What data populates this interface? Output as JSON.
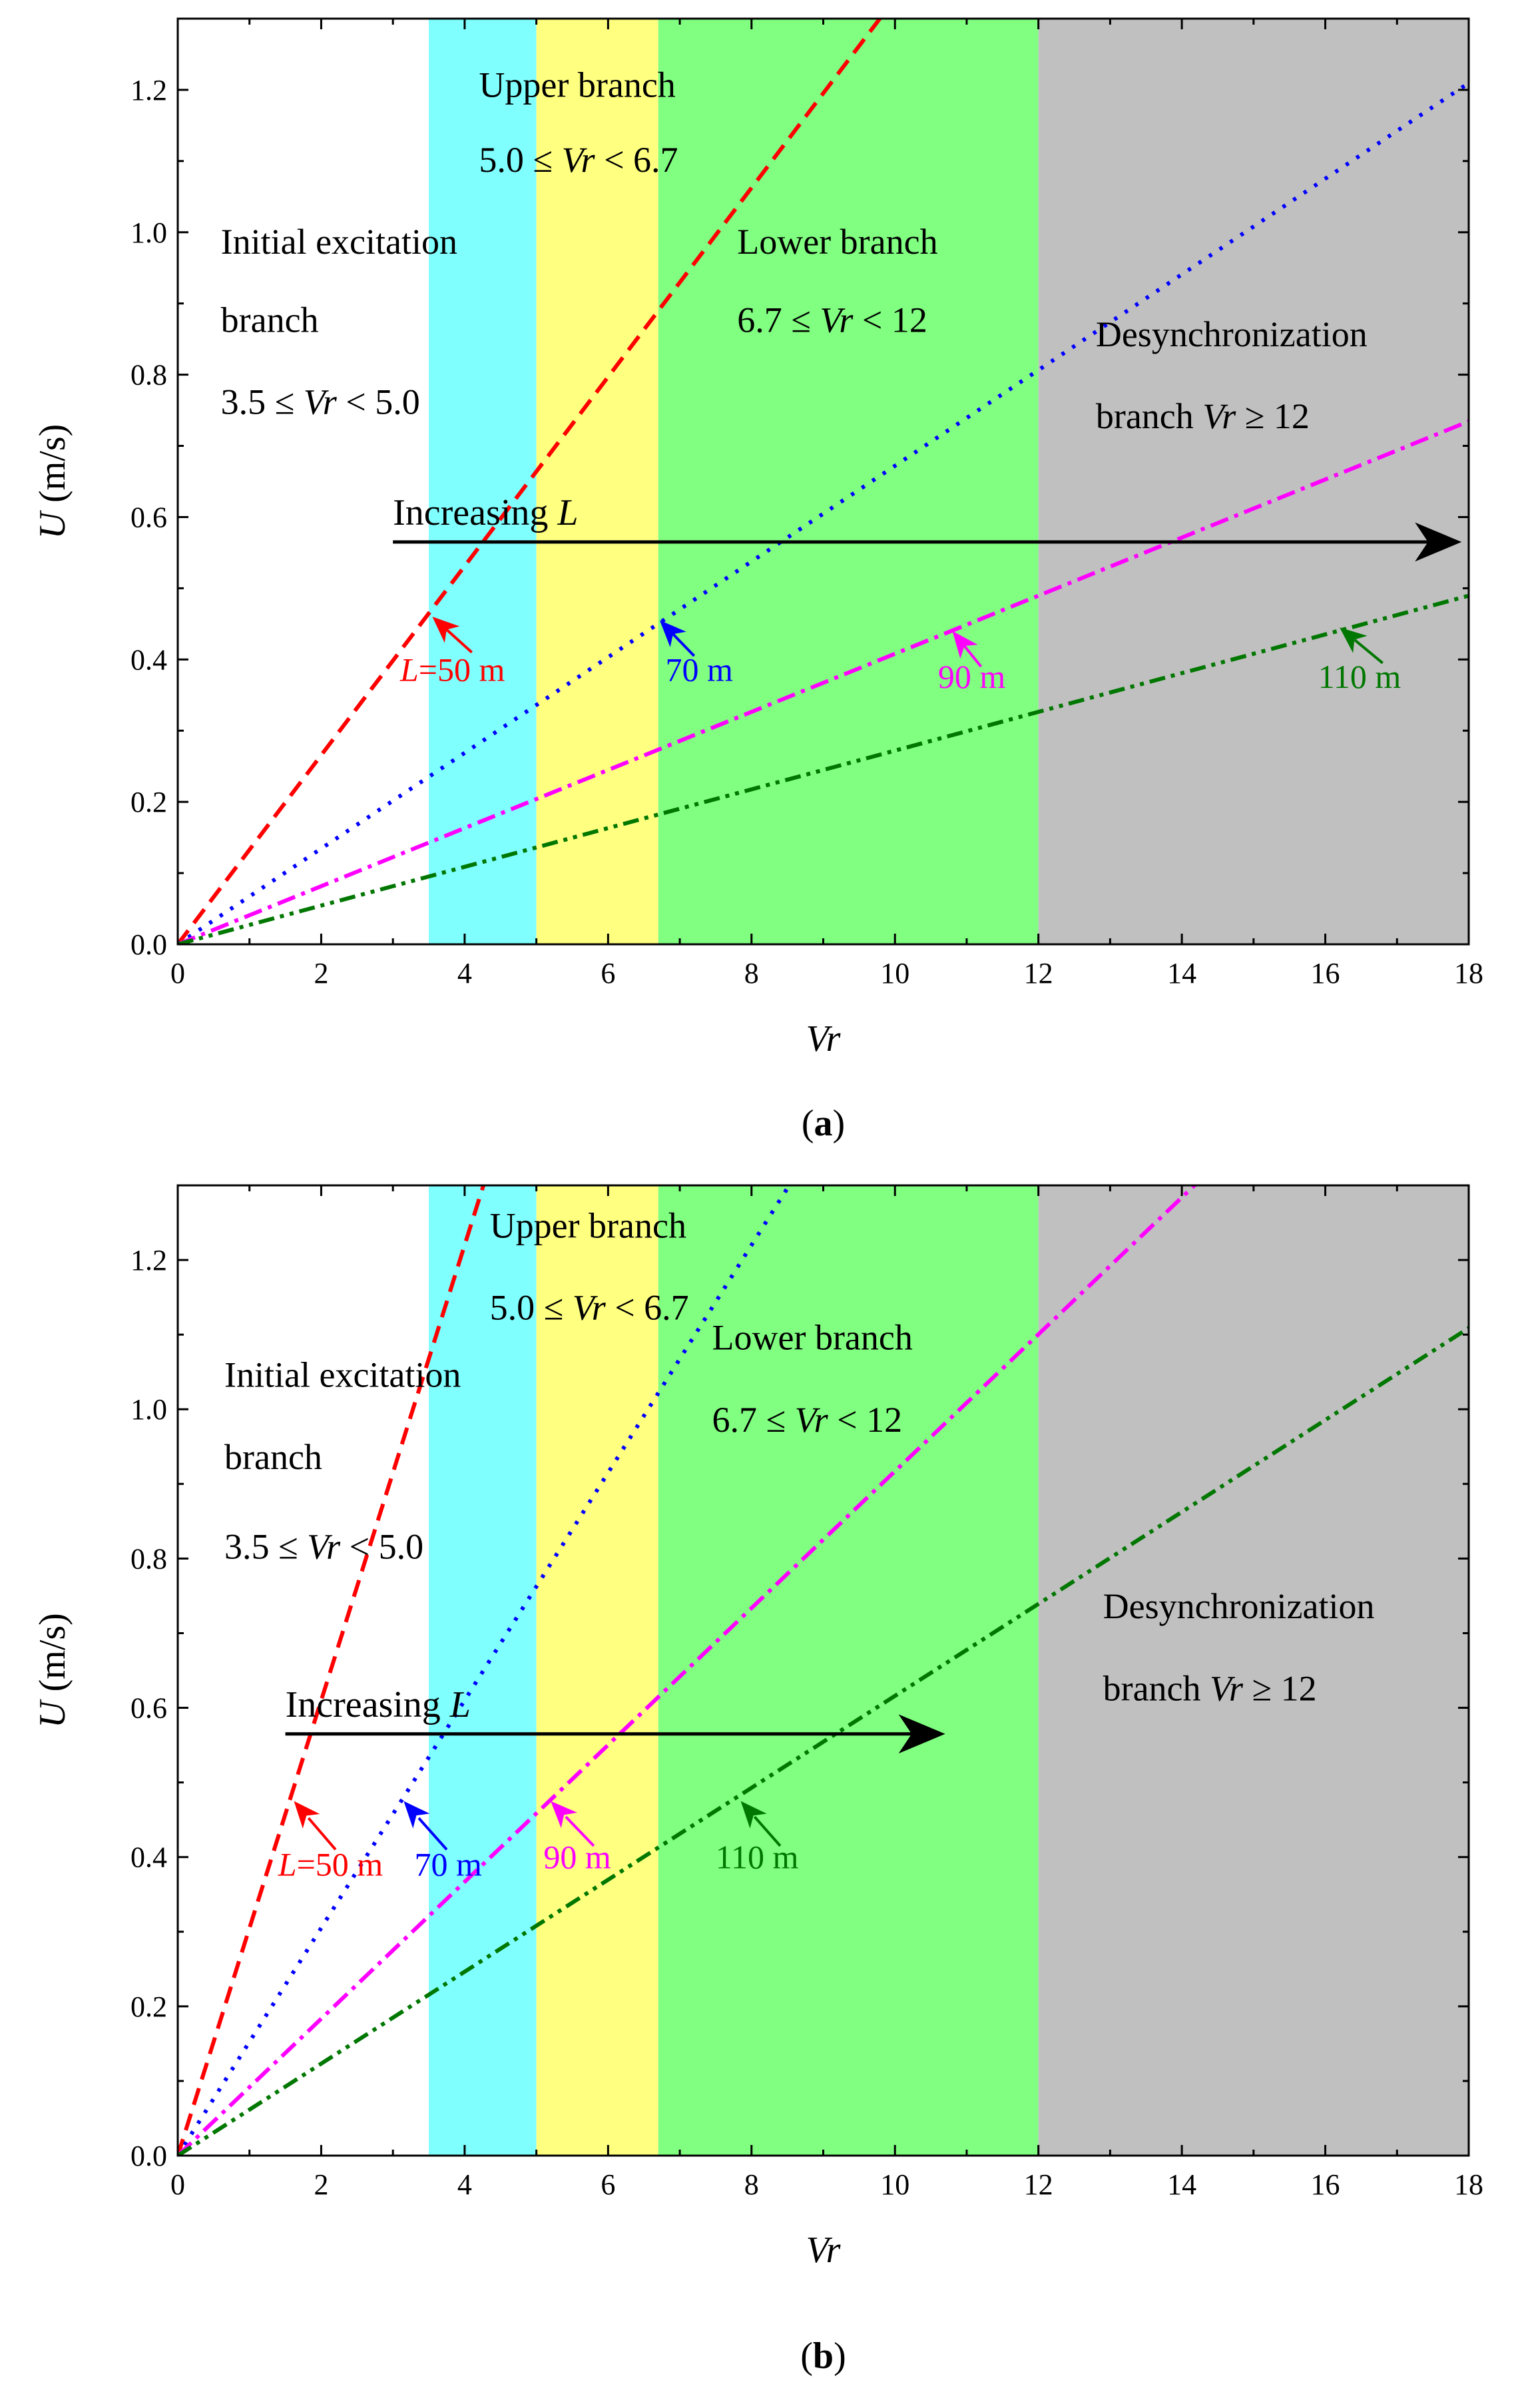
{
  "chart_data": [
    {
      "type": "line",
      "panel_label": "(a)",
      "xlabel": "Vr",
      "ylabel_var": "U",
      "ylabel_unit": " (m/s)",
      "xlim": [
        0,
        18
      ],
      "ylim": [
        0,
        1.3
      ],
      "xticks": [
        0,
        2,
        4,
        6,
        8,
        10,
        12,
        14,
        16,
        18
      ],
      "yticks": [
        0.0,
        0.2,
        0.4,
        0.6,
        0.8,
        1.0,
        1.2
      ],
      "regions": [
        {
          "name": "initial-excitation",
          "x0": 0,
          "x1": 3.5,
          "color": "#ffffff"
        },
        {
          "name": "cyan",
          "x0": 3.5,
          "x1": 5.0,
          "color": "#80ffff"
        },
        {
          "name": "yellow",
          "x0": 5.0,
          "x1": 6.7,
          "color": "#ffff80"
        },
        {
          "name": "green",
          "x0": 6.7,
          "x1": 12,
          "color": "#80ff80"
        },
        {
          "name": "gray",
          "x0": 12,
          "x1": 18,
          "color": "#c0c0c0"
        }
      ],
      "series": [
        {
          "name": "L=50 m",
          "color": "#ff0000",
          "dash": "dash",
          "slope": 0.1328
        },
        {
          "name": "70 m",
          "color": "#0000ff",
          "dash": "dot",
          "slope": 0.0672
        },
        {
          "name": "90 m",
          "color": "#ff00ff",
          "dash": "dashdot",
          "slope": 0.0408
        },
        {
          "name": "110 m",
          "color": "#007700",
          "dash": "dashdotdot",
          "slope": 0.0272
        }
      ],
      "arrow": {
        "label": "Increasing ",
        "label_var": "L",
        "x0": 3.0,
        "x1": 17.9,
        "y": 0.565
      },
      "region_labels": [
        {
          "lines": [
            "Initial excitation",
            "branch",
            "3.5 ≤ |Vr| < 5.0"
          ],
          "x": 0.6,
          "y": [
            0.97,
            0.86,
            0.745
          ]
        },
        {
          "lines": [
            "Upper branch",
            "5.0 ≤ |Vr| < 6.7"
          ],
          "x": 4.2,
          "y": [
            1.19,
            1.085
          ]
        },
        {
          "lines": [
            "Lower branch",
            "6.7 ≤ |Vr| < 12"
          ],
          "x": 7.8,
          "y": [
            0.97,
            0.86
          ]
        },
        {
          "lines": [
            "Desynchronization",
            "branch    |Vr| ≥ 12"
          ],
          "x": 12.8,
          "y": [
            0.84,
            0.725
          ]
        }
      ],
      "series_labels": [
        {
          "text": "=50 m",
          "var": "L",
          "color": "#ff0000",
          "tx": 3.1,
          "ty": 0.37,
          "ax": 3.55,
          "ay": 0.46,
          "hx": 4.1,
          "hy": 0.41
        },
        {
          "text": "70 m",
          "color": "#0000ff",
          "tx": 6.8,
          "ty": 0.37,
          "ax": 6.72,
          "ay": 0.455,
          "hx": 7.2,
          "hy": 0.405
        },
        {
          "text": "90 m",
          "color": "#ff00ff",
          "tx": 10.6,
          "ty": 0.36,
          "ax": 10.8,
          "ay": 0.44,
          "hx": 11.2,
          "hy": 0.39
        },
        {
          "text": "110 m",
          "color": "#007700",
          "tx": 15.9,
          "ty": 0.36,
          "ax": 16.2,
          "ay": 0.445,
          "hx": 16.8,
          "hy": 0.395
        }
      ]
    },
    {
      "type": "line",
      "panel_label": "(b)",
      "xlabel": "Vr",
      "ylabel_var": "U",
      "ylabel_unit": " (m/s)",
      "xlim": [
        0,
        18
      ],
      "ylim": [
        0,
        1.3
      ],
      "xticks": [
        0,
        2,
        4,
        6,
        8,
        10,
        12,
        14,
        16,
        18
      ],
      "yticks": [
        0.0,
        0.2,
        0.4,
        0.6,
        0.8,
        1.0,
        1.2
      ],
      "regions": [
        {
          "name": "initial-excitation",
          "x0": 0,
          "x1": 3.5,
          "color": "#ffffff"
        },
        {
          "name": "cyan",
          "x0": 3.5,
          "x1": 5.0,
          "color": "#80ffff"
        },
        {
          "name": "yellow",
          "x0": 5.0,
          "x1": 6.7,
          "color": "#ffff80"
        },
        {
          "name": "green",
          "x0": 6.7,
          "x1": 12,
          "color": "#80ff80"
        },
        {
          "name": "gray",
          "x0": 12,
          "x1": 18,
          "color": "#c0c0c0"
        }
      ],
      "series": [
        {
          "name": "L=50 m",
          "color": "#ff0000",
          "dash": "dash",
          "slope": 0.305
        },
        {
          "name": "70 m",
          "color": "#0000ff",
          "dash": "dot",
          "slope": 0.1525
        },
        {
          "name": "90 m",
          "color": "#ff00ff",
          "dash": "dashdot",
          "slope": 0.0917
        },
        {
          "name": "110 m",
          "color": "#007700",
          "dash": "dashdotdot",
          "slope": 0.0616
        }
      ],
      "arrow": {
        "label": "Increasing ",
        "label_var": "L",
        "x0": 1.5,
        "x1": 10.7,
        "y": 0.565
      },
      "region_labels": [
        {
          "lines": [
            "Initial excitation",
            "branch",
            "3.5 ≤ |Vr| < 5.0"
          ],
          "x": 0.65,
          "y": [
            1.03,
            0.92,
            0.8
          ]
        },
        {
          "lines": [
            "Upper branch",
            "5.0 ≤ |Vr| < 6.7"
          ],
          "x": 4.35,
          "y": [
            1.23,
            1.12
          ]
        },
        {
          "lines": [
            "Lower branch",
            "6.7 ≤ |Vr| < 12"
          ],
          "x": 7.45,
          "y": [
            1.08,
            0.97
          ]
        },
        {
          "lines": [
            "Desynchronization",
            "branch    |Vr| ≥ 12"
          ],
          "x": 12.9,
          "y": [
            0.72,
            0.61
          ]
        }
      ],
      "series_labels": [
        {
          "text": "=50 m",
          "var": "L",
          "color": "#ff0000",
          "tx": 1.4,
          "ty": 0.375,
          "ax": 1.62,
          "ay": 0.475,
          "hx": 2.2,
          "hy": 0.41
        },
        {
          "text": "70 m",
          "color": "#0000ff",
          "tx": 3.3,
          "ty": 0.375,
          "ax": 3.15,
          "ay": 0.475,
          "hx": 3.75,
          "hy": 0.41
        },
        {
          "text": "90 m",
          "color": "#ff00ff",
          "tx": 5.1,
          "ty": 0.385,
          "ax": 5.2,
          "ay": 0.475,
          "hx": 5.8,
          "hy": 0.415
        },
        {
          "text": "110 m",
          "color": "#007700",
          "tx": 7.5,
          "ty": 0.385,
          "ax": 7.85,
          "ay": 0.475,
          "hx": 8.4,
          "hy": 0.415
        }
      ]
    }
  ]
}
